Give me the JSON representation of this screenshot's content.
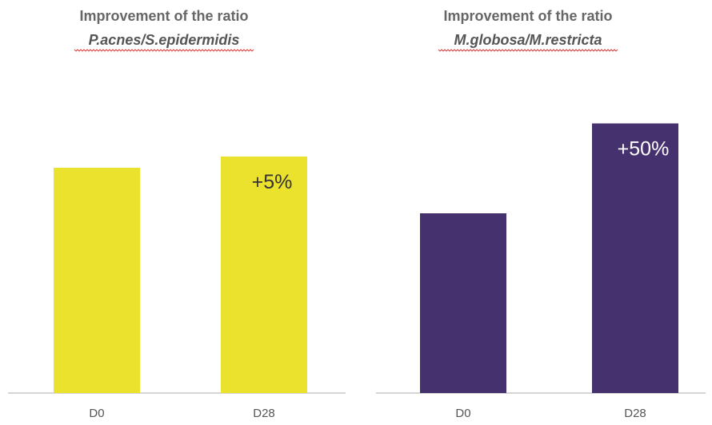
{
  "chart_data": [
    {
      "type": "bar",
      "title": "Improvement of the ratio",
      "subtitle": "P.acnes/S.epidermidis",
      "categories": [
        "D0",
        "D28"
      ],
      "values": [
        100,
        105
      ],
      "data_labels": [
        "",
        "+5%"
      ],
      "color": "#ebe22e",
      "label_color": "#333333",
      "grid": false,
      "legend": "none"
    },
    {
      "type": "bar",
      "title": "Improvement of the ratio",
      "subtitle": "M.globosa/M.restricta",
      "categories": [
        "D0",
        "D28"
      ],
      "values": [
        100,
        150
      ],
      "data_labels": [
        "",
        "+50%"
      ],
      "color": "#46316f",
      "label_color": "#ffffff",
      "grid": false,
      "legend": "none"
    }
  ]
}
